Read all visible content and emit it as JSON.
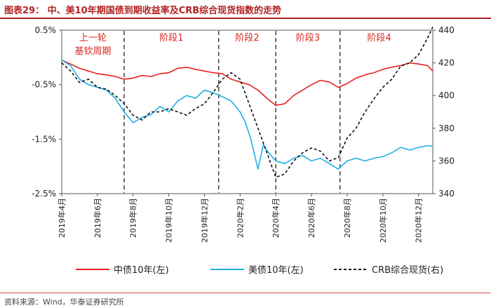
{
  "header": {
    "title": "图表29： 中、美10年期国债到期收益率及CRB综合现货指数的走势"
  },
  "source": "资料来源：Wind，华泰证券研究所",
  "colors": {
    "cn": "#e8201f",
    "us": "#1fb0e6",
    "crb": "#111111",
    "title": "#b22222",
    "phase_label": "#d8281c"
  },
  "chart_data": {
    "type": "line",
    "categories": [
      "2019年4月",
      "2019年6月",
      "2019年8月",
      "2019年10月",
      "2019年12月",
      "2020年2月",
      "2020年4月",
      "2020年6月",
      "2020年8月",
      "2020年10月",
      "2020年12月"
    ],
    "x_range": [
      0,
      20.8
    ],
    "y_left": {
      "ylim": [
        -2.5,
        0.5
      ],
      "ticks": [
        0.5,
        -0.5,
        -1.5,
        -2.5
      ],
      "tick_labels": [
        "0.5%",
        "-0.5%",
        "-1.5%",
        "-2.5%"
      ]
    },
    "y_right": {
      "ylim": [
        340,
        440
      ],
      "ticks": [
        440,
        420,
        400,
        380,
        360,
        340
      ],
      "tick_labels": [
        "440",
        "420",
        "400",
        "380",
        "360",
        "340"
      ]
    },
    "phase_dividers": [
      3.5,
      8.8,
      12,
      15.6
    ],
    "phases": [
      {
        "label_line1": "上一轮",
        "label_line2": "基钦周期",
        "x": 1.75
      },
      {
        "label_line1": "阶段1",
        "label_line2": "",
        "x": 6.15
      },
      {
        "label_line1": "阶段2",
        "label_line2": "",
        "x": 10.4
      },
      {
        "label_line1": "阶段3",
        "label_line2": "",
        "x": 13.8
      },
      {
        "label_line1": "阶段4",
        "label_line2": "",
        "x": 17.8
      }
    ],
    "series": [
      {
        "name": "中债10年(左)",
        "axis": "left",
        "x": [
          0,
          0.5,
          1,
          1.5,
          2,
          2.5,
          3,
          3.5,
          4,
          4.5,
          5,
          5.5,
          6,
          6.5,
          7,
          7.5,
          8,
          8.5,
          9,
          9.5,
          10,
          10.5,
          11,
          11.5,
          12,
          12.5,
          13,
          13.5,
          14,
          14.5,
          15,
          15.5,
          16,
          16.5,
          17,
          17.5,
          18,
          18.5,
          19,
          19.5,
          20,
          20.5,
          20.8
        ],
        "values": [
          -0.05,
          -0.12,
          -0.2,
          -0.25,
          -0.3,
          -0.32,
          -0.35,
          -0.4,
          -0.38,
          -0.33,
          -0.35,
          -0.3,
          -0.28,
          -0.2,
          -0.18,
          -0.22,
          -0.25,
          -0.28,
          -0.3,
          -0.4,
          -0.45,
          -0.5,
          -0.6,
          -0.75,
          -0.88,
          -0.85,
          -0.7,
          -0.6,
          -0.5,
          -0.42,
          -0.45,
          -0.55,
          -0.48,
          -0.38,
          -0.32,
          -0.28,
          -0.22,
          -0.18,
          -0.15,
          -0.1,
          -0.12,
          -0.15,
          -0.25
        ]
      },
      {
        "name": "美债10年(左)",
        "axis": "left",
        "x": [
          0,
          0.5,
          1,
          1.5,
          2,
          2.5,
          3,
          3.5,
          4,
          4.5,
          5,
          5.5,
          6,
          6.5,
          7,
          7.5,
          8,
          8.5,
          9,
          9.5,
          10,
          10.3,
          10.6,
          11,
          11.3,
          11.6,
          12,
          12.5,
          13,
          13.5,
          14,
          14.5,
          15,
          15.5,
          16,
          16.5,
          17,
          17.5,
          18,
          18.5,
          19,
          19.5,
          20,
          20.5,
          20.8
        ],
        "values": [
          -0.05,
          -0.15,
          -0.4,
          -0.5,
          -0.55,
          -0.6,
          -0.75,
          -1.0,
          -1.2,
          -1.1,
          -1.05,
          -0.9,
          -1.0,
          -0.8,
          -0.7,
          -0.75,
          -0.6,
          -0.65,
          -0.72,
          -0.8,
          -1.0,
          -1.2,
          -1.5,
          -2.05,
          -1.6,
          -1.75,
          -1.9,
          -1.95,
          -1.85,
          -1.8,
          -1.9,
          -1.85,
          -1.95,
          -2.05,
          -1.9,
          -1.85,
          -1.9,
          -1.85,
          -1.82,
          -1.75,
          -1.65,
          -1.7,
          -1.65,
          -1.62,
          -1.63
        ]
      },
      {
        "name": "CRB综合现货(右)",
        "axis": "right",
        "x": [
          0,
          0.5,
          1,
          1.5,
          2,
          2.5,
          3,
          3.5,
          4,
          4.5,
          5,
          5.5,
          6,
          6.5,
          7,
          7.5,
          8,
          8.5,
          9,
          9.5,
          10,
          10.5,
          11,
          11.5,
          12,
          12.5,
          13,
          13.5,
          14,
          14.5,
          15,
          15.5,
          16,
          16.5,
          17,
          17.5,
          18,
          18.5,
          19,
          19.5,
          20,
          20.5,
          20.8
        ],
        "values": [
          420,
          415,
          408,
          410,
          405,
          404,
          400,
          395,
          388,
          385,
          390,
          390,
          392,
          390,
          388,
          392,
          395,
          402,
          410,
          414,
          410,
          395,
          380,
          365,
          350,
          352,
          360,
          365,
          368,
          366,
          360,
          362,
          374,
          380,
          390,
          398,
          405,
          410,
          418,
          420,
          425,
          435,
          442
        ]
      }
    ],
    "legend": {
      "placement": "bottom"
    }
  }
}
